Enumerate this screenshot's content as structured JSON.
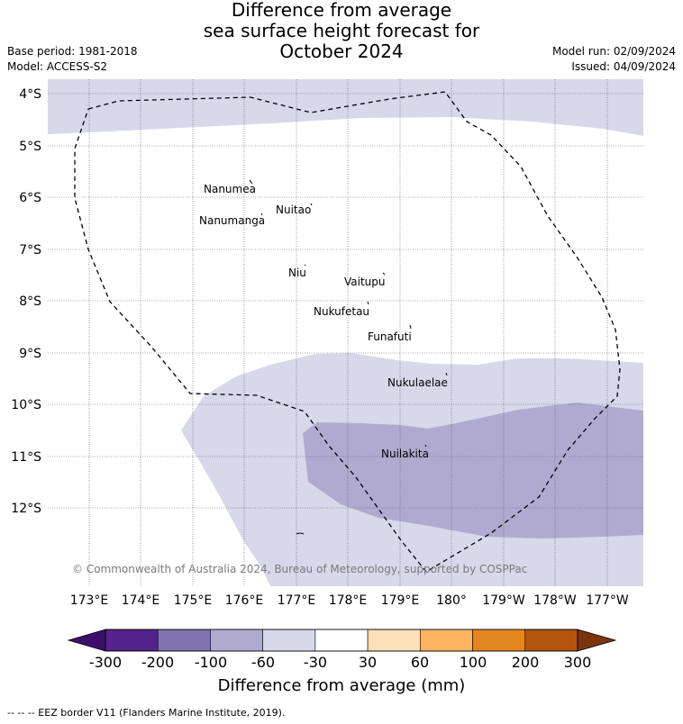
{
  "header": {
    "title_lines": [
      "Difference from average",
      "sea surface height forecast for",
      "October 2024"
    ],
    "base_period": "Base period: 1981-2018",
    "model": "Model: ACCESS-S2",
    "model_run": "Model run: 02/09/2024",
    "issued": "Issued: 04/09/2024"
  },
  "map": {
    "lat_labels": [
      "4°S",
      "5°S",
      "6°S",
      "7°S",
      "8°S",
      "9°S",
      "10°S",
      "11°S",
      "12°S"
    ],
    "lon_labels": [
      "173°E",
      "174°E",
      "175°E",
      "176°E",
      "177°E",
      "178°E",
      "179°E",
      "180°",
      "179°W",
      "178°W",
      "177°W"
    ],
    "islands": [
      "Nanumea",
      "Nuitao",
      "Nanumanga",
      "Niu",
      "Vaitupu",
      "Nukufetau",
      "Funafuti",
      "Nukulaelae",
      "Nuilakita"
    ],
    "copyright": "© Commonwealth of Australia 2024, Bureau of Meteorology, supported by COSPPac",
    "fill_colors": {
      "light": "#d7d8ea",
      "medium": "#b0aad0"
    }
  },
  "colorbar": {
    "title": "Difference from average (mm)",
    "tick_labels": [
      "-300",
      "-200",
      "-100",
      "-60",
      "-30",
      "30",
      "60",
      "100",
      "200",
      "300"
    ],
    "colors": [
      "#3d0f6b",
      "#55238c",
      "#8075b0",
      "#b0aad0",
      "#d7d8ea",
      "#ffffff",
      "#fde0b8",
      "#fdb562",
      "#e3861e",
      "#b3560b",
      "#7b3410"
    ]
  },
  "footer": {
    "legend_text": "-- --  -- EEZ border V11 (Flanders Marine Institute, 2019)."
  }
}
